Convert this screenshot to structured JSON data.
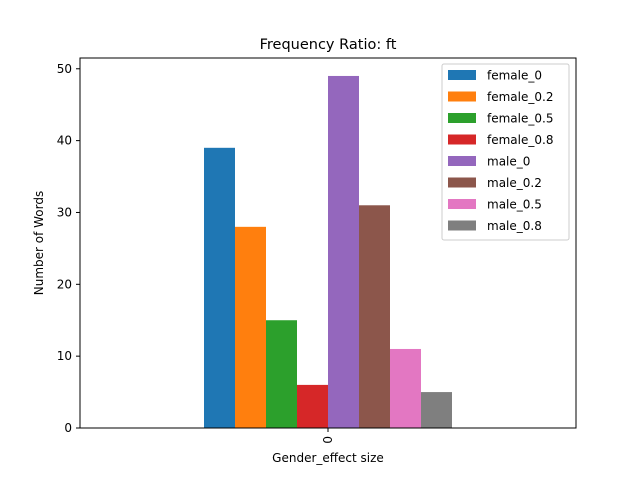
{
  "chart_data": {
    "type": "bar",
    "title": "Frequency Ratio: ft",
    "xlabel": "Gender_effect size",
    "ylabel": "Number of Words",
    "categories": [
      "0"
    ],
    "ylim": [
      0,
      51.5
    ],
    "yticks": [
      0,
      10,
      20,
      30,
      40,
      50
    ],
    "legend_position": "top-right",
    "grid": false,
    "series": [
      {
        "name": "female_0",
        "color": "#1f77b4",
        "values": [
          39
        ]
      },
      {
        "name": "female_0.2",
        "color": "#ff7f0e",
        "values": [
          28
        ]
      },
      {
        "name": "female_0.5",
        "color": "#2ca02c",
        "values": [
          15
        ]
      },
      {
        "name": "female_0.8",
        "color": "#d62728",
        "values": [
          6
        ]
      },
      {
        "name": "male_0",
        "color": "#9467bd",
        "values": [
          49
        ]
      },
      {
        "name": "male_0.2",
        "color": "#8c564b",
        "values": [
          31
        ]
      },
      {
        "name": "male_0.5",
        "color": "#e377c2",
        "values": [
          11
        ]
      },
      {
        "name": "male_0.8",
        "color": "#7f7f7f",
        "values": [
          5
        ]
      }
    ]
  }
}
